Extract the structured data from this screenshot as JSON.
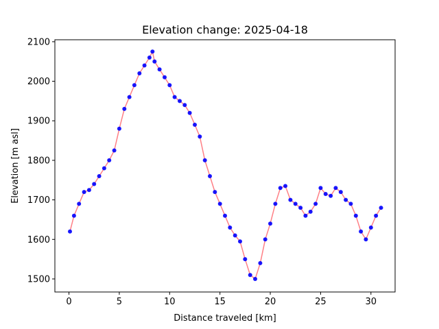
{
  "chart_data": {
    "type": "line",
    "title": "Elevation change: 2025-04-18",
    "xlabel": "Distance traveled [km]",
    "ylabel": "Elevation [m asl]",
    "xlim": [
      -1.4,
      32.4
    ],
    "ylim": [
      1467,
      2105
    ],
    "xticks": [
      0,
      5,
      10,
      15,
      20,
      25,
      30
    ],
    "yticks": [
      1500,
      1600,
      1700,
      1800,
      1900,
      2000,
      2100
    ],
    "grid": false,
    "legend": "none",
    "line_color": "#ff7f85",
    "marker_color": "#0000ff",
    "series": [
      {
        "x": [
          0.1,
          0.5,
          1.0,
          1.5,
          2.0,
          2.5,
          3.0,
          3.5,
          4.0,
          4.5,
          5.0,
          5.5,
          6.0,
          6.5,
          7.0,
          7.5,
          8.0,
          8.3,
          8.5,
          9.0,
          9.5,
          10.0,
          10.5,
          11.0,
          11.5,
          12.0,
          12.5,
          13.0,
          13.5,
          14.0,
          14.5,
          15.0,
          15.5,
          16.0,
          16.5,
          17.0,
          17.5,
          18.0,
          18.5,
          19.0,
          19.5,
          20.0,
          20.5,
          21.0,
          21.5,
          22.0,
          22.5,
          23.0,
          23.5,
          24.0,
          24.5,
          25.0,
          25.5,
          26.0,
          26.5,
          27.0,
          27.5,
          28.0,
          28.5,
          29.0,
          29.5,
          30.0,
          30.5,
          31.0
        ],
        "y": [
          1620,
          1660,
          1690,
          1720,
          1725,
          1740,
          1760,
          1780,
          1800,
          1825,
          1880,
          1930,
          1960,
          1990,
          2020,
          2040,
          2060,
          2075,
          2050,
          2030,
          2010,
          1990,
          1960,
          1950,
          1940,
          1920,
          1890,
          1860,
          1800,
          1760,
          1720,
          1690,
          1660,
          1630,
          1610,
          1595,
          1550,
          1510,
          1500,
          1540,
          1600,
          1640,
          1690,
          1730,
          1735,
          1700,
          1690,
          1680,
          1660,
          1670,
          1690,
          1730,
          1715,
          1710,
          1730,
          1720,
          1700,
          1690,
          1660,
          1620,
          1600,
          1630,
          1660,
          1680
        ]
      }
    ]
  }
}
